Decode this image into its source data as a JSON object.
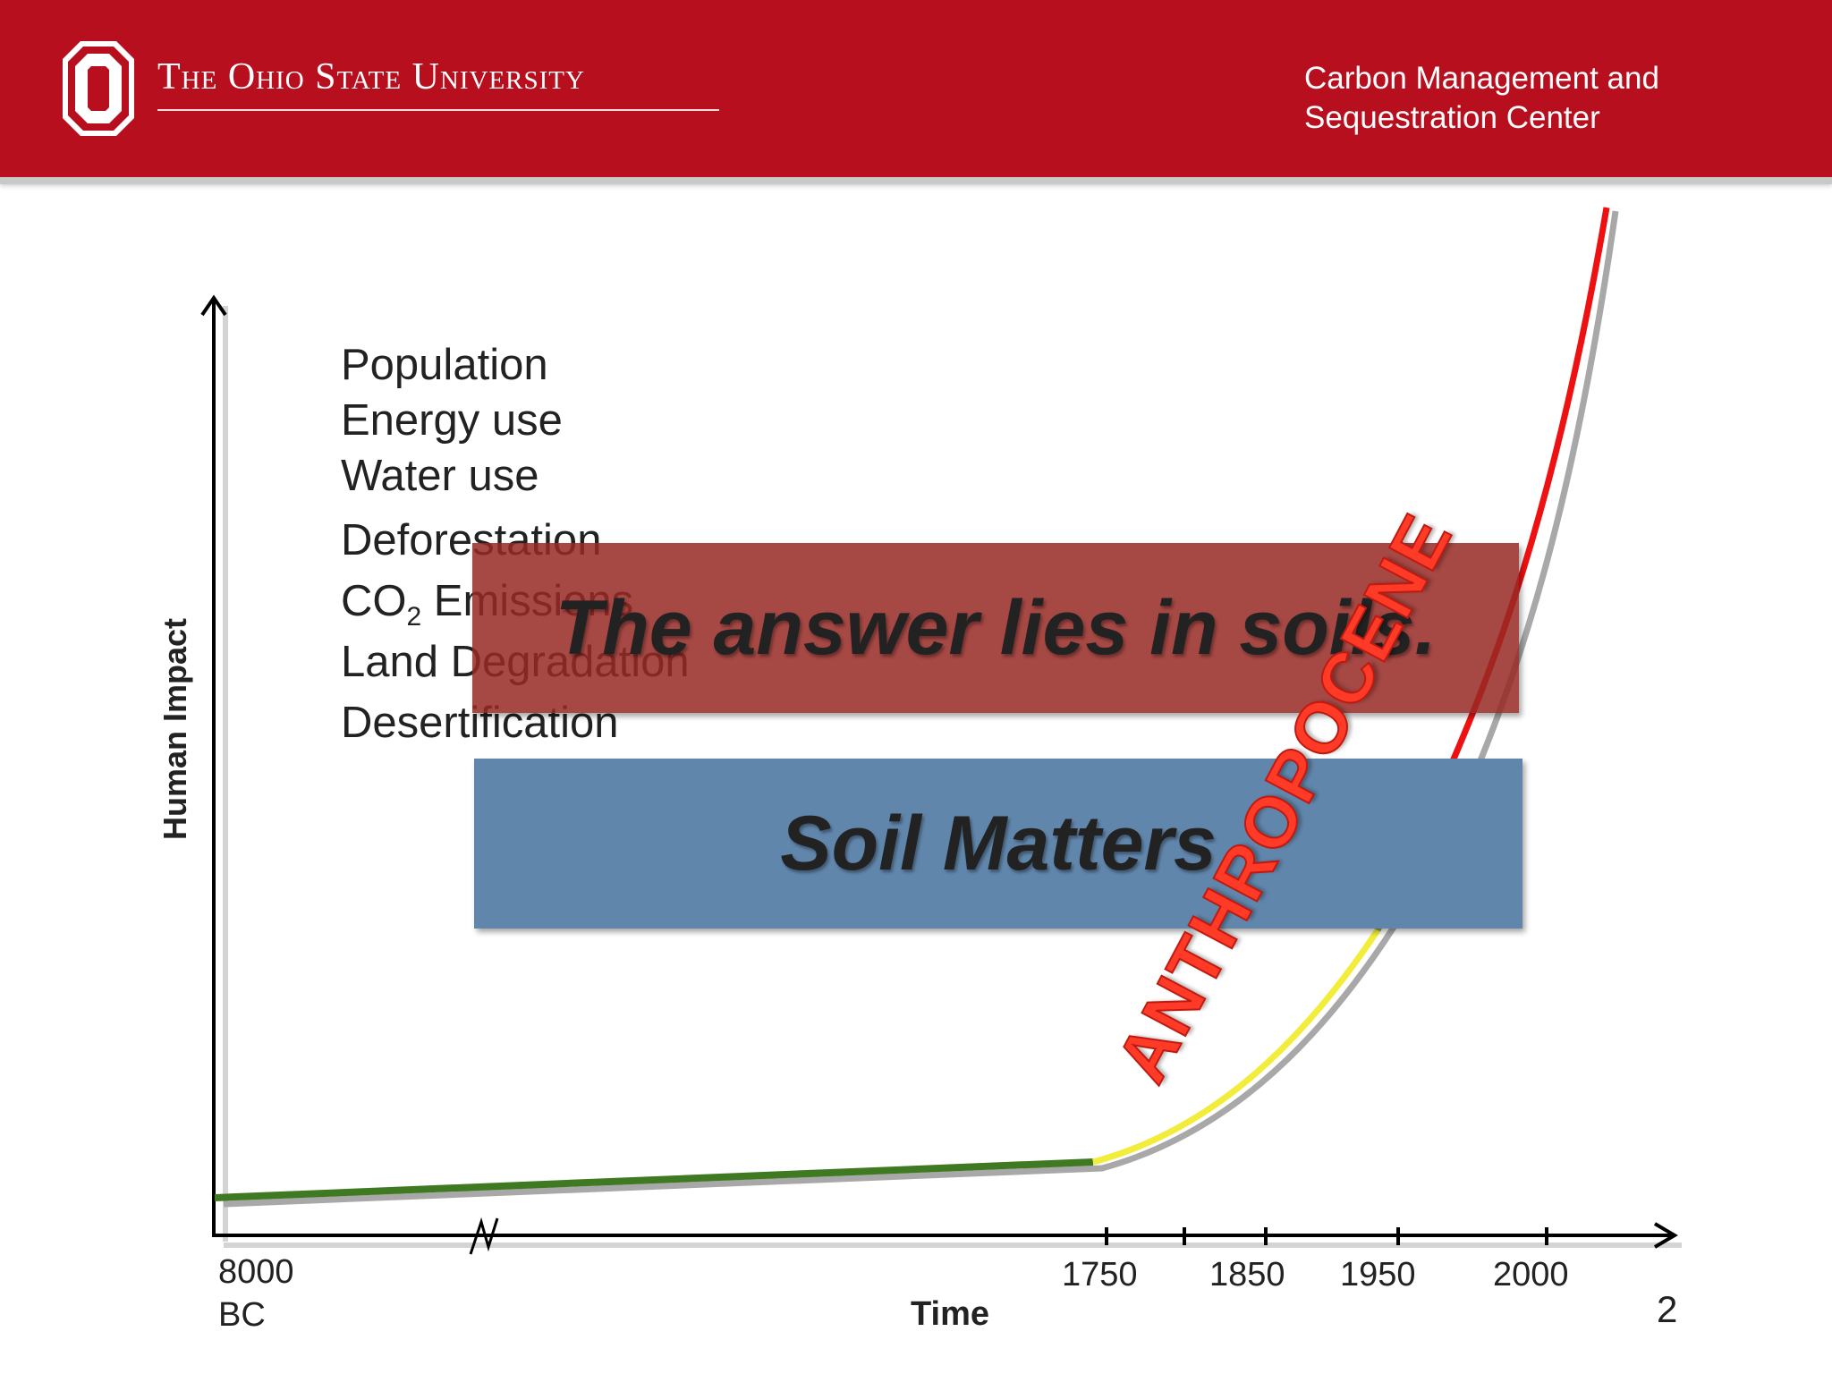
{
  "header": {
    "university": "The Ohio State University",
    "center_line1": "Carbon Management and",
    "center_line2": "Sequestration Center",
    "colors": {
      "scarlet": "#b80f1f",
      "gray_band": "#c9c9c9"
    }
  },
  "impact_list": [
    {
      "text": "Population"
    },
    {
      "text": "Energy use"
    },
    {
      "text": "Water use"
    },
    {
      "text": "Deforestation"
    },
    {
      "text": "CO",
      "sub": "2",
      "rest": " Emissions"
    },
    {
      "text": "Land Degradation"
    },
    {
      "text": "Desertification"
    }
  ],
  "axes": {
    "ylabel": "Human Impact",
    "xlabel": "Time",
    "ticks": [
      "1750",
      "1850",
      "1950",
      "2000"
    ],
    "origin_line1": "8000",
    "origin_line2": "BC"
  },
  "banners": {
    "red": "The answer lies in soils.",
    "blue": "Soil Matters"
  },
  "curve_label": "ANTHROPOCENE",
  "curve_colors": {
    "flat": "#3f7a22",
    "transition": "#f2ec3a",
    "steep": "#ee1111",
    "shadow": "#a8a8a8"
  },
  "page_number": "2"
}
